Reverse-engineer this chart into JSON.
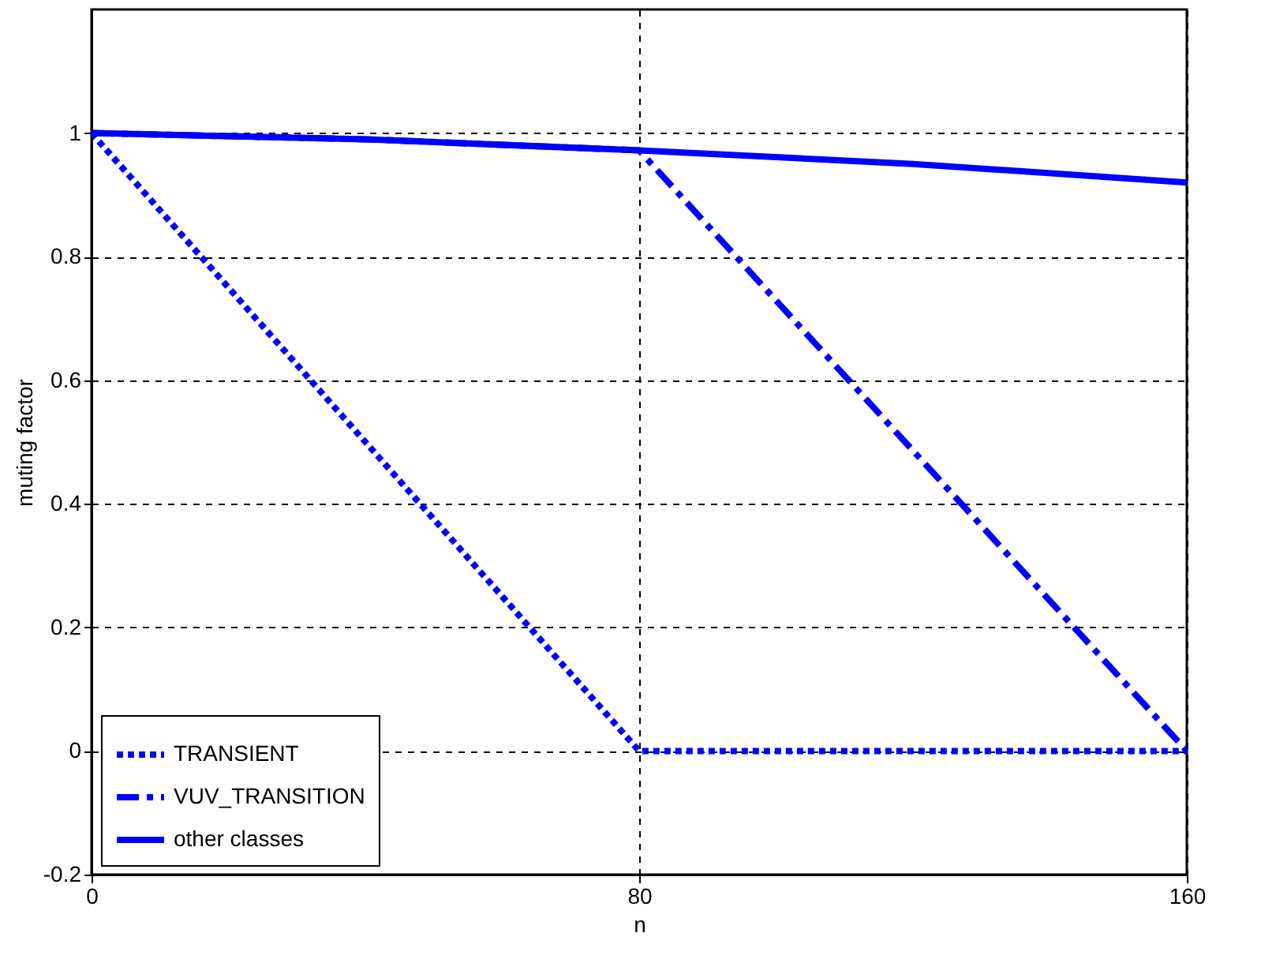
{
  "chart_data": {
    "type": "line",
    "xlabel": "n",
    "ylabel": "muting factor",
    "xlim": [
      0,
      160
    ],
    "xticks": [
      0,
      80,
      160
    ],
    "ylim": [
      -0.2,
      1.2
    ],
    "yticks": [
      -0.2,
      0,
      0.2,
      0.4,
      0.6,
      0.8,
      1
    ],
    "grid": true,
    "legend": "bottom left",
    "series": [
      {
        "name": "TRANSIENT",
        "color": "#0000ff",
        "line_style": "dotted",
        "x": [
          0,
          80,
          160
        ],
        "values": [
          1,
          0,
          0
        ]
      },
      {
        "name": "VUV_TRANSITION",
        "color": "#0000ff",
        "line_style": "dashdot",
        "x": [
          0,
          40,
          80,
          160
        ],
        "values": [
          1,
          0.99,
          0.972,
          0
        ]
      },
      {
        "name": "other classes",
        "color": "#0000ff",
        "line_style": "solid",
        "x": [
          0,
          40,
          80,
          120,
          160
        ],
        "values": [
          1,
          0.99,
          0.972,
          0.95,
          0.92
        ]
      }
    ]
  }
}
